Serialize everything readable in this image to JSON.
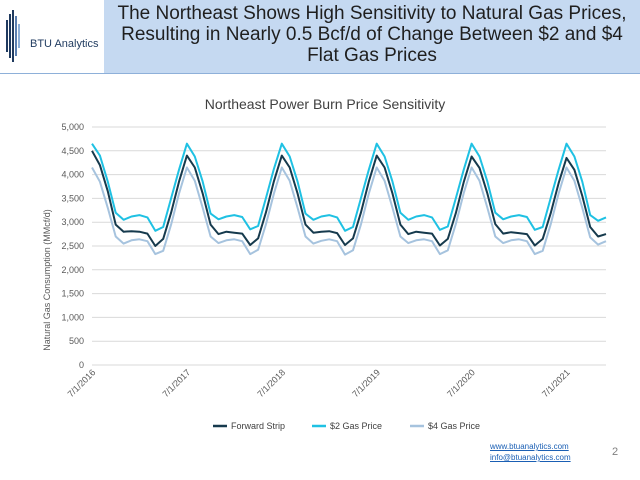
{
  "header": {
    "title": "The Northeast Shows High Sensitivity to Natural Gas Prices, Resulting in Nearly 0.5 Bcf/d of Change Between $2 and $4 Flat Gas Prices",
    "logo_text": "BTU Analytics"
  },
  "footer": {
    "website": "www.btuanalytics.com",
    "email": "info@btuanalytics.com",
    "page_number": "2"
  },
  "colors": {
    "header_bg": "#c5d9f1",
    "forward_strip": "#163a4d",
    "two_dollar": "#1fc1e3",
    "four_dollar": "#a6c3de"
  },
  "chart_data": {
    "type": "line",
    "title": "Northeast Power Burn Price Sensitivity",
    "ylabel": "Natural Gas Consumption (MMcf/d)",
    "xlabel": "",
    "ylim": [
      0,
      5000
    ],
    "yticks": [
      "0",
      "500",
      "1,000",
      "1,500",
      "2,000",
      "2,500",
      "3,000",
      "3,500",
      "4,000",
      "4,500",
      "5,000"
    ],
    "ytick_values": [
      0,
      500,
      1000,
      1500,
      2000,
      2500,
      3000,
      3500,
      4000,
      4500,
      5000
    ],
    "x_start": "2016-07",
    "x_end": "2021-12",
    "xtick_labels": [
      "7/1/2016",
      "7/1/2017",
      "7/1/2018",
      "7/1/2019",
      "7/1/2020",
      "7/1/2021"
    ],
    "grid": true,
    "legend_position": "bottom",
    "series": [
      {
        "name": "Forward Strip",
        "values": [
          4500,
          4200,
          3650,
          2950,
          2800,
          2810,
          2800,
          2760,
          2500,
          2650,
          3200,
          3850,
          4400,
          4150,
          3600,
          2950,
          2750,
          2800,
          2780,
          2760,
          2520,
          2660,
          3210,
          3860,
          4400,
          4150,
          3600,
          2950,
          2780,
          2800,
          2810,
          2770,
          2520,
          2660,
          3200,
          3850,
          4400,
          4150,
          3600,
          2950,
          2750,
          2800,
          2780,
          2760,
          2510,
          2650,
          3190,
          3840,
          4380,
          4140,
          3600,
          2960,
          2760,
          2790,
          2770,
          2750,
          2510,
          2650,
          3180,
          3820,
          4350,
          4100,
          3550,
          2900,
          2700,
          2750
        ]
      },
      {
        "name": "$2 Gas Price",
        "values": [
          4650,
          4400,
          3850,
          3200,
          3050,
          3120,
          3150,
          3100,
          2820,
          2900,
          3500,
          4100,
          4650,
          4380,
          3850,
          3180,
          3060,
          3120,
          3150,
          3110,
          2850,
          2920,
          3510,
          4120,
          4650,
          4380,
          3850,
          3180,
          3050,
          3120,
          3150,
          3100,
          2820,
          2900,
          3500,
          4100,
          4650,
          4380,
          3850,
          3200,
          3050,
          3120,
          3150,
          3100,
          2840,
          2910,
          3500,
          4100,
          4650,
          4380,
          3850,
          3200,
          3060,
          3120,
          3150,
          3110,
          2840,
          2900,
          3500,
          4100,
          4650,
          4380,
          3850,
          3150,
          3030,
          3100
        ]
      },
      {
        "name": "$4 Gas Price",
        "values": [
          4150,
          3850,
          3300,
          2700,
          2550,
          2620,
          2640,
          2600,
          2330,
          2400,
          2950,
          3600,
          4150,
          3870,
          3300,
          2700,
          2560,
          2620,
          2640,
          2600,
          2330,
          2420,
          2960,
          3600,
          4150,
          3870,
          3300,
          2700,
          2550,
          2610,
          2640,
          2600,
          2320,
          2410,
          2950,
          3600,
          4150,
          3870,
          3300,
          2700,
          2560,
          2620,
          2640,
          2600,
          2330,
          2410,
          2960,
          3610,
          4150,
          3870,
          3300,
          2700,
          2560,
          2620,
          2640,
          2600,
          2330,
          2400,
          2950,
          3600,
          4150,
          3870,
          3300,
          2680,
          2530,
          2600
        ]
      }
    ]
  }
}
